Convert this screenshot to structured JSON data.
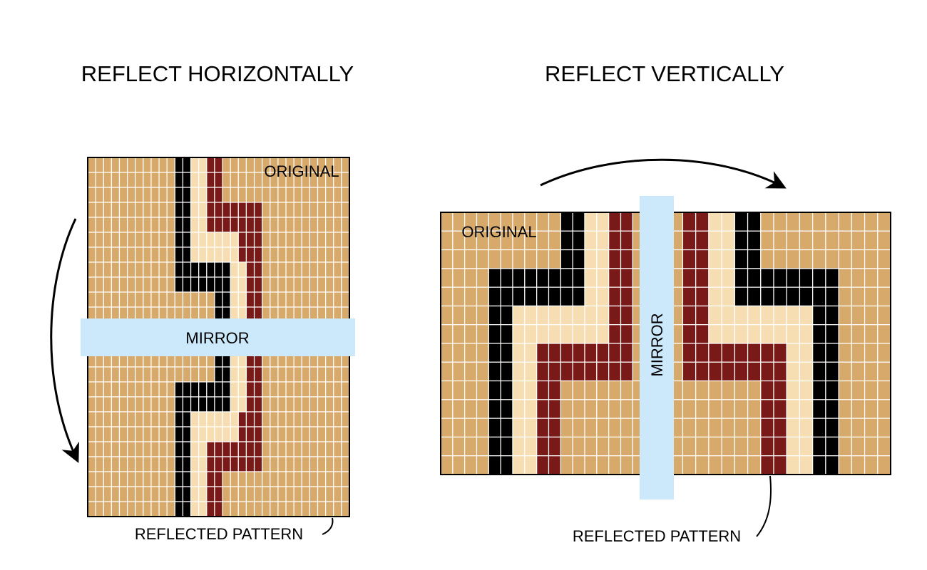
{
  "left_panel": {
    "title": "REFLECT HORIZONTALLY",
    "original_label": "ORIGINAL",
    "mirror_label": "MIRROR",
    "reflected_label": "REFLECTED PATTERN"
  },
  "right_panel": {
    "title": "REFLECT VERTICALLY",
    "original_label": "ORIGINAL",
    "mirror_label": "MIRROR",
    "reflected_label": "REFLECTED PATTERN"
  },
  "colors": {
    "tan": "#d7a96a",
    "cream": "#f6deb2",
    "black": "#000000",
    "maroon": "#7a1a18",
    "grid": "#ffffff",
    "mirror": "#cce8fb"
  },
  "patterns": {
    "left_original": [
      "...........KKCCMM................",
      "...........KKCCMM................",
      "...........KKCCMM................",
      "...........KKCCMMMMMMM...........",
      "...........KKCCMMMMMMM...........",
      "...........KKCCCCCCMMM...........",
      "...........KKCCCCCCMMM...........",
      "...........KKKKKKKCCMM...........",
      "...........KKKKKKKCCMM...........",
      "................KKCCMM...........",
      "................KKCCMM...........",
      "................................."
    ],
    "right_original": [
      "..........KKCCMM..",
      "..........KKCCMM..",
      "..........KKCCMM..",
      "....KKKKKKKKCCMM..",
      "....KKKKKKKKCCMM..",
      "....KKCCCCCCCCMM..",
      "....KKCCCCCCCCMM..",
      "....KKCCMMMMMMMM..",
      "....KKCCMMMMMMMM..",
      "....KKCCMM........",
      "....KKCCMM........",
      "....KKCCMM........",
      "....KKCCMM........",
      "....KKCCMM........"
    ]
  }
}
